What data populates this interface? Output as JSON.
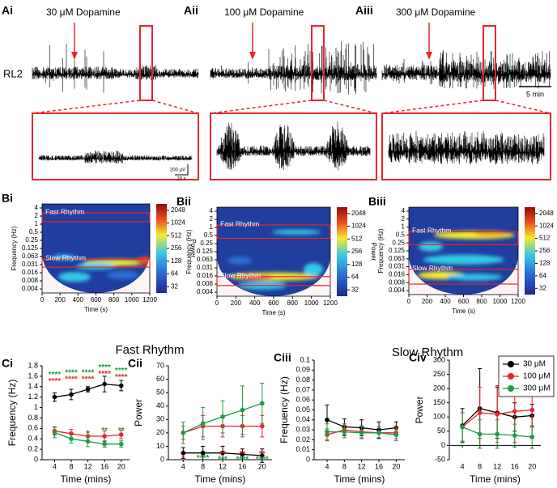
{
  "traces": [
    {
      "label": "Ai",
      "title": "30 μM Dopamine"
    },
    {
      "label": "Aii",
      "title": "100 μM Dopamine"
    },
    {
      "label": "Aiii",
      "title": "300 μM Dopamine"
    }
  ],
  "row_label": "RL2",
  "scale_bar": "5 min",
  "inset_scale": {
    "amplitude": "200 μV",
    "time": "20 s"
  },
  "spectrograms": [
    {
      "label": "Bi",
      "fast_label": "Fast Rhythm",
      "slow_label": "Slow Rhythm"
    },
    {
      "label": "Bii",
      "fast_label": "Fast Rhythm",
      "slow_label": "Slow Rhythm"
    },
    {
      "label": "Biii",
      "fast_label": "Fast Rhythm",
      "slow_label": "Slow Rhythm"
    }
  ],
  "spectrogram_axes": {
    "ylabel": "Frequency (Hz)",
    "xlabel": "Time (s)",
    "yticks": [
      4,
      2,
      1,
      0.5,
      0.25,
      0.125,
      0.063,
      0.031,
      0.016,
      0.008,
      0.004
    ],
    "xticks": [
      0,
      200,
      400,
      600,
      800,
      1000,
      1200
    ],
    "colorbar_label": "Power",
    "colorbar_ticks": [
      2048,
      1024,
      512,
      256,
      128,
      64,
      32
    ]
  },
  "section_titles": [
    "Fast Rhythm",
    "Slow Rhythm"
  ],
  "legend": {
    "position": "upper right"
  },
  "chart_data": [
    {
      "type": "line",
      "label": "Ci",
      "xlabel": "Time (mins)",
      "ylabel": "Frequency (Hz)",
      "x": [
        4,
        8,
        12,
        16,
        20
      ],
      "xlim": [
        1,
        22
      ],
      "xticks": [
        4,
        8,
        12,
        16,
        20
      ],
      "ylim": [
        0,
        1.8
      ],
      "yticks": [
        0,
        0.2,
        0.4,
        0.6,
        0.8,
        1,
        1.2,
        1.4,
        1.6,
        1.8
      ],
      "series": [
        {
          "name": "30 μM",
          "color": "#000000",
          "values": [
            1.2,
            1.25,
            1.35,
            1.45,
            1.42
          ],
          "errors": [
            0.08,
            0.1,
            0.05,
            0.15,
            0.1
          ]
        },
        {
          "name": "100 μM",
          "color": "#e8262a",
          "values": [
            0.55,
            0.5,
            0.45,
            0.45,
            0.48
          ],
          "errors": [
            0.08,
            0.08,
            0.08,
            0.1,
            0.08
          ]
        },
        {
          "name": "300 μM",
          "color": "#1f9a48",
          "values": [
            0.52,
            0.4,
            0.35,
            0.3,
            0.3
          ],
          "errors": [
            0.1,
            0.08,
            0.1,
            0.06,
            0.06
          ]
        }
      ],
      "annotations": [
        {
          "text": "****",
          "x": 4,
          "y": 1.62,
          "color": "#1f9a48"
        },
        {
          "text": "****",
          "x": 4,
          "y": 1.5,
          "color": "#e8262a"
        },
        {
          "text": "****",
          "x": 8,
          "y": 1.66,
          "color": "#1f9a48"
        },
        {
          "text": "****",
          "x": 8,
          "y": 1.54,
          "color": "#e8262a"
        },
        {
          "text": "****",
          "x": 12,
          "y": 1.66,
          "color": "#1f9a48"
        },
        {
          "text": "****",
          "x": 12,
          "y": 1.54,
          "color": "#e8262a"
        },
        {
          "text": "****",
          "x": 16,
          "y": 1.76,
          "color": "#1f9a48"
        },
        {
          "text": "****",
          "x": 16,
          "y": 1.64,
          "color": "#e8262a"
        },
        {
          "text": "****",
          "x": 20,
          "y": 1.7,
          "color": "#1f9a48"
        },
        {
          "text": "****",
          "x": 20,
          "y": 1.58,
          "color": "#e8262a"
        },
        {
          "text": "*",
          "x": 12,
          "y": 0.5,
          "color": "#1f9a48"
        },
        {
          "text": "**",
          "x": 16,
          "y": 0.55,
          "color": "#1f9a48"
        },
        {
          "text": "**",
          "x": 20,
          "y": 0.55,
          "color": "#1f9a48"
        }
      ]
    },
    {
      "type": "line",
      "label": "Cii",
      "xlabel": "Time (mins)",
      "ylabel": "Power",
      "x": [
        4,
        8,
        12,
        16,
        20
      ],
      "xlim": [
        1,
        22
      ],
      "xticks": [
        4,
        8,
        12,
        16,
        20
      ],
      "ylim": [
        0,
        70
      ],
      "yticks": [
        0,
        10,
        20,
        30,
        40,
        50,
        60,
        70
      ],
      "series": [
        {
          "name": "30 μM",
          "color": "#000000",
          "values": [
            5,
            5,
            5,
            4,
            3
          ],
          "errors": [
            4,
            5,
            5,
            4,
            5
          ]
        },
        {
          "name": "100 μM",
          "color": "#e8262a",
          "values": [
            20,
            25,
            25,
            25,
            25
          ],
          "errors": [
            5,
            8,
            8,
            8,
            8
          ]
        },
        {
          "name": "300 μM",
          "color": "#1f9a48",
          "values": [
            20,
            27,
            32,
            37,
            42
          ],
          "errors": [
            8,
            12,
            12,
            18,
            15
          ]
        }
      ],
      "annotations": [
        {
          "text": "*",
          "x": 4,
          "y": 1,
          "color": "#e8262a"
        },
        {
          "text": "****",
          "x": 8,
          "y": 1,
          "color": "#1f9a48"
        },
        {
          "text": "**",
          "x": 12,
          "y": 4,
          "color": "#e8262a"
        },
        {
          "text": "***",
          "x": 12,
          "y": 0,
          "color": "#1f9a48"
        },
        {
          "text": "**",
          "x": 16,
          "y": 4,
          "color": "#e8262a"
        },
        {
          "text": "****",
          "x": 16,
          "y": 0,
          "color": "#1f9a48"
        },
        {
          "text": "**",
          "x": 20,
          "y": 4,
          "color": "#e8262a"
        },
        {
          "text": "****",
          "x": 20,
          "y": 0,
          "color": "#1f9a48"
        }
      ]
    },
    {
      "type": "line",
      "label": "Ciii",
      "xlabel": "Time (mins)",
      "ylabel": "Frequency (Hz)",
      "x": [
        4,
        8,
        12,
        16,
        20
      ],
      "xlim": [
        1,
        22
      ],
      "xticks": [
        4,
        8,
        12,
        16,
        20
      ],
      "ylim": [
        0,
        0.1
      ],
      "yticks": [
        0,
        0.01,
        0.02,
        0.03,
        0.04,
        0.05,
        0.06,
        0.07,
        0.08,
        0.09,
        0.1
      ],
      "series": [
        {
          "name": "30 μM",
          "color": "#000000",
          "values": [
            0.04,
            0.033,
            0.032,
            0.03,
            0.032
          ],
          "errors": [
            0.015,
            0.008,
            0.008,
            0.008,
            0.006
          ]
        },
        {
          "name": "100 μM",
          "color": "#e8262a",
          "values": [
            0.025,
            0.03,
            0.028,
            0.027,
            0.027
          ],
          "errors": [
            0.006,
            0.006,
            0.006,
            0.006,
            0.006
          ]
        },
        {
          "name": "300 μM",
          "color": "#1f9a48",
          "values": [
            0.028,
            0.028,
            0.027,
            0.027,
            0.025
          ],
          "errors": [
            0.008,
            0.006,
            0.006,
            0.006,
            0.006
          ]
        }
      ],
      "annotations": []
    },
    {
      "type": "line",
      "label": "Civ",
      "xlabel": "Time (mins)",
      "ylabel": "Power",
      "x": [
        4,
        8,
        12,
        16,
        20
      ],
      "xlim": [
        1,
        22
      ],
      "xticks": [
        4,
        8,
        12,
        16,
        20
      ],
      "ylim": [
        -50,
        300
      ],
      "yticks": [
        -50,
        0,
        50,
        100,
        150,
        200,
        250,
        300
      ],
      "series": [
        {
          "name": "30 μM",
          "color": "#000000",
          "values": [
            70,
            130,
            115,
            100,
            105
          ],
          "errors": [
            60,
            140,
            90,
            50,
            40
          ]
        },
        {
          "name": "100 μM",
          "color": "#e8262a",
          "values": [
            65,
            115,
            110,
            120,
            125
          ],
          "errors": [
            50,
            90,
            100,
            110,
            100
          ]
        },
        {
          "name": "300 μM",
          "color": "#1f9a48",
          "values": [
            65,
            40,
            40,
            35,
            30
          ],
          "errors": [
            50,
            50,
            50,
            40,
            40
          ]
        }
      ],
      "annotations": []
    }
  ]
}
